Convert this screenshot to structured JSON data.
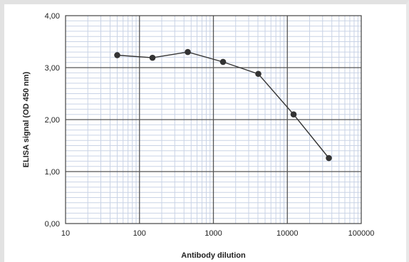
{
  "chart_data": {
    "type": "line",
    "xlabel": "Antibody dilution",
    "ylabel": "ELISA signal (OD 450 nm)",
    "xscale": "log",
    "xlim": [
      10,
      100000
    ],
    "ylim": [
      0,
      4
    ],
    "x_ticks": [
      "10",
      "100",
      "1000",
      "10000",
      "100000"
    ],
    "y_ticks": [
      "0,00",
      "1,00",
      "2,00",
      "3,00",
      "4,00"
    ],
    "grid": true,
    "series": [
      {
        "x": [
          50,
          150,
          450,
          1350,
          4050,
          12150,
          36450
        ],
        "y": [
          3.24,
          3.19,
          3.3,
          3.11,
          2.88,
          2.1,
          1.26
        ]
      }
    ],
    "colors": {
      "line": "#333333",
      "marker": "#333333",
      "grid_major": "#555555",
      "grid_minor": "#c9d3e6"
    }
  }
}
